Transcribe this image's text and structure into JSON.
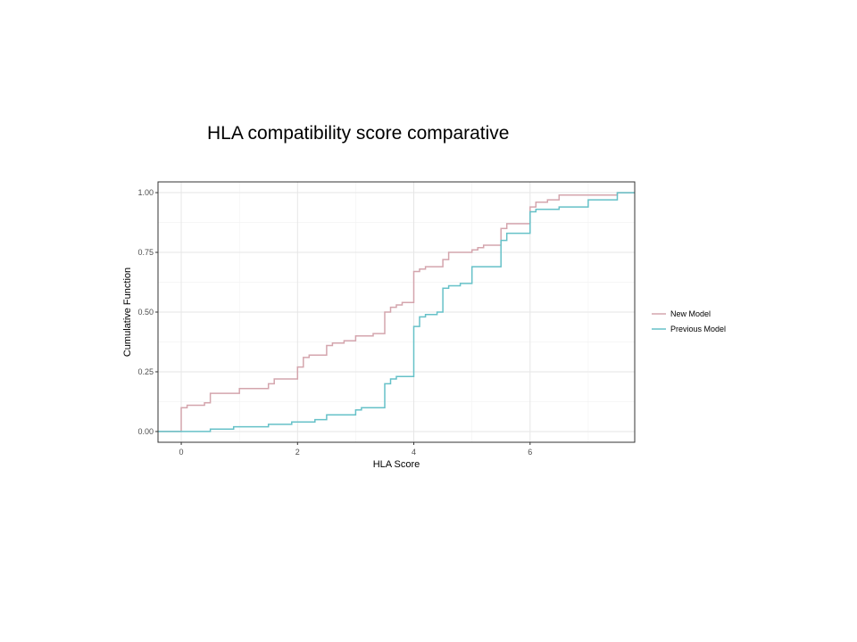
{
  "slide": {
    "title": "HLA compatibility score comparative"
  },
  "chart_data": {
    "type": "line",
    "subtype": "step (empirical cumulative distribution)",
    "title": "",
    "xlabel": "HLA Score",
    "ylabel": "Cumulative Function",
    "xlim": [
      -0.4,
      7.8
    ],
    "ylim": [
      -0.045,
      1.045
    ],
    "x_ticks": [
      0,
      2,
      4,
      6
    ],
    "x_tick_labels": [
      "0",
      "2",
      "4",
      "6"
    ],
    "y_ticks": [
      0,
      0.25,
      0.5,
      0.75,
      1
    ],
    "y_tick_labels": [
      "0.00",
      "0.25",
      "0.50",
      "0.75",
      "1.00"
    ],
    "grid": true,
    "legend_position": "right",
    "series": [
      {
        "name": "New Model",
        "color": "#d4a5ad",
        "x": [
          -0.4,
          0,
          0.1,
          0.4,
          0.5,
          1,
          1.5,
          1.6,
          2,
          2.1,
          2.2,
          2.5,
          2.6,
          2.8,
          3,
          3.3,
          3.5,
          3.6,
          3.7,
          3.8,
          4,
          4.1,
          4.2,
          4.5,
          4.6,
          5,
          5.1,
          5.2,
          5.5,
          5.6,
          6,
          6.1,
          6.3,
          6.5,
          7,
          7.5,
          7.8
        ],
        "y": [
          0,
          0.1,
          0.11,
          0.12,
          0.16,
          0.18,
          0.2,
          0.22,
          0.27,
          0.31,
          0.32,
          0.36,
          0.37,
          0.38,
          0.4,
          0.41,
          0.5,
          0.52,
          0.53,
          0.54,
          0.67,
          0.68,
          0.69,
          0.72,
          0.75,
          0.76,
          0.77,
          0.78,
          0.85,
          0.87,
          0.94,
          0.96,
          0.97,
          0.99,
          0.99,
          1,
          1
        ]
      },
      {
        "name": "Previous Model",
        "color": "#66c1c8",
        "x": [
          -0.4,
          0.5,
          0.6,
          0.9,
          1,
          1.5,
          1.7,
          1.9,
          2,
          2.3,
          2.5,
          3,
          3.1,
          3.5,
          3.6,
          3.7,
          4,
          4.1,
          4.2,
          4.4,
          4.5,
          4.6,
          4.7,
          4.8,
          5,
          5.5,
          5.6,
          6,
          6.1,
          6.5,
          7,
          7.5,
          7.8
        ],
        "y": [
          0,
          0.01,
          0.01,
          0.02,
          0.02,
          0.03,
          0.03,
          0.04,
          0.04,
          0.05,
          0.07,
          0.09,
          0.1,
          0.2,
          0.22,
          0.23,
          0.44,
          0.48,
          0.49,
          0.5,
          0.6,
          0.61,
          0.61,
          0.62,
          0.69,
          0.8,
          0.83,
          0.92,
          0.93,
          0.94,
          0.97,
          1,
          1
        ]
      }
    ]
  }
}
